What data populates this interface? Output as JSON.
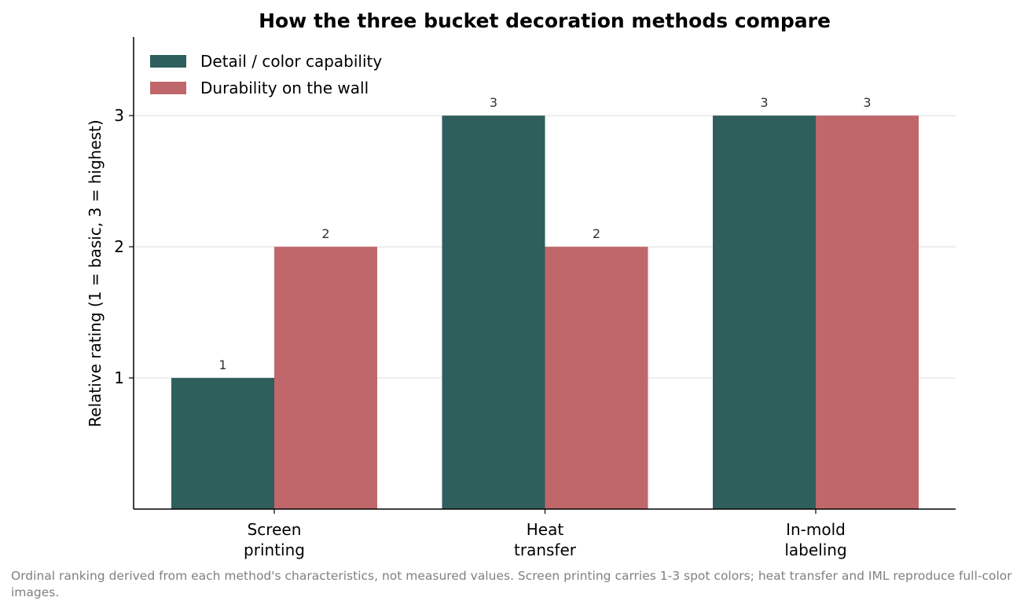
{
  "chart_data": {
    "type": "bar",
    "title": "How the three bucket decoration methods compare",
    "ylabel": "Relative rating (1 = basic, 3 = highest)",
    "xlabel": "",
    "categories": [
      [
        "Screen",
        "printing"
      ],
      [
        "Heat",
        "transfer"
      ],
      [
        "In-mold",
        "labeling"
      ]
    ],
    "series": [
      {
        "name": "Detail / color capability",
        "color": "#2e5f5c",
        "values": [
          1,
          3,
          3
        ]
      },
      {
        "name": "Durability on the wall",
        "color": "#c0676b",
        "values": [
          2,
          2,
          3
        ]
      }
    ],
    "yticks": [
      1,
      2,
      3
    ],
    "ylim": [
      0,
      3.6
    ],
    "grid": "y",
    "legend": "top-left"
  },
  "footnote": "Ordinal ranking derived from each method's characteristics, not measured values. Screen printing carries 1-3 spot colors; heat transfer and IML reproduce full-color images."
}
